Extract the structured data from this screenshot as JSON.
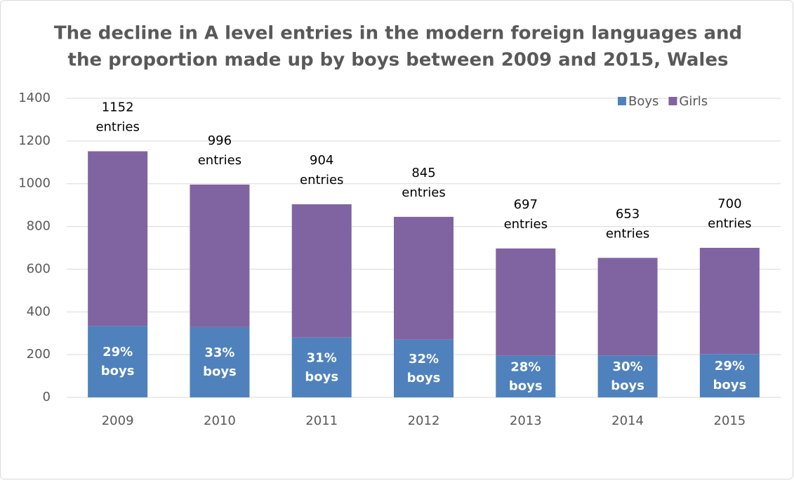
{
  "chart_data": {
    "type": "stacked_bar",
    "title": [
      "The decline in A level entries in the modern foreign languages and",
      "the proportion made up by boys between 2009 and 2015, Wales"
    ],
    "categories": [
      "2009",
      "2010",
      "2011",
      "2012",
      "2013",
      "2014",
      "2015"
    ],
    "series": [
      {
        "name": "Boys",
        "color": "#4f81bd",
        "values": [
          334,
          329,
          280,
          270,
          195,
          196,
          203
        ]
      },
      {
        "name": "Girls",
        "color": "#8064a2",
        "values": [
          818,
          667,
          624,
          575,
          502,
          457,
          497
        ]
      }
    ],
    "total_labels": [
      [
        "1152",
        "entries"
      ],
      [
        "996",
        "entries"
      ],
      [
        "904",
        "entries"
      ],
      [
        "845",
        "entries"
      ],
      [
        "697",
        "entries"
      ],
      [
        "653",
        "entries"
      ],
      [
        "700",
        "entries"
      ]
    ],
    "boys_labels": [
      [
        "29%",
        "boys"
      ],
      [
        "33%",
        "boys"
      ],
      [
        "31%",
        "boys"
      ],
      [
        "32%",
        "boys"
      ],
      [
        "28%",
        "boys"
      ],
      [
        "30%",
        "boys"
      ],
      [
        "29%",
        "boys"
      ]
    ],
    "ylim": [
      0,
      1400
    ],
    "yticks": [
      0,
      200,
      400,
      600,
      800,
      1000,
      1200,
      1400
    ],
    "grid": true,
    "legend": "top-right"
  }
}
